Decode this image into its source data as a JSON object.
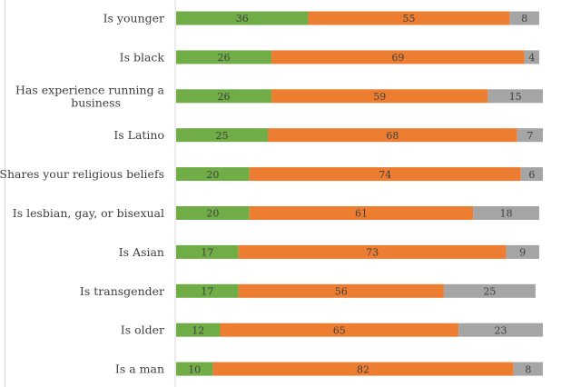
{
  "chart_data": {
    "type": "bar",
    "orientation": "horizontal",
    "stacked": true,
    "categories": [
      "Is younger",
      "Is black",
      "Has experience running a business",
      "Is Latino",
      "Shares your religious beliefs",
      "Is lesbian, gay, or bisexual",
      "Is Asian",
      "Is transgender",
      "Is older",
      "Is a man"
    ],
    "category_lines": [
      [
        "Is younger"
      ],
      [
        "Is black"
      ],
      [
        "Has experience running a",
        "business"
      ],
      [
        "Is Latino"
      ],
      [
        "Shares your religious beliefs"
      ],
      [
        "Is lesbian, gay, or bisexual"
      ],
      [
        "Is Asian"
      ],
      [
        "Is transgender"
      ],
      [
        "Is older"
      ],
      [
        "Is a man"
      ]
    ],
    "series": [
      {
        "color": "#70ad47",
        "values": [
          36,
          26,
          26,
          25,
          20,
          20,
          17,
          17,
          12,
          10
        ]
      },
      {
        "color": "#ed7d31",
        "values": [
          55,
          69,
          59,
          68,
          74,
          61,
          73,
          56,
          65,
          82
        ]
      },
      {
        "color": "#a5a5a5",
        "values": [
          8,
          4,
          15,
          7,
          6,
          18,
          9,
          25,
          23,
          8
        ]
      }
    ],
    "xlim": [
      0,
      100
    ],
    "legend": "none",
    "grid": false
  }
}
